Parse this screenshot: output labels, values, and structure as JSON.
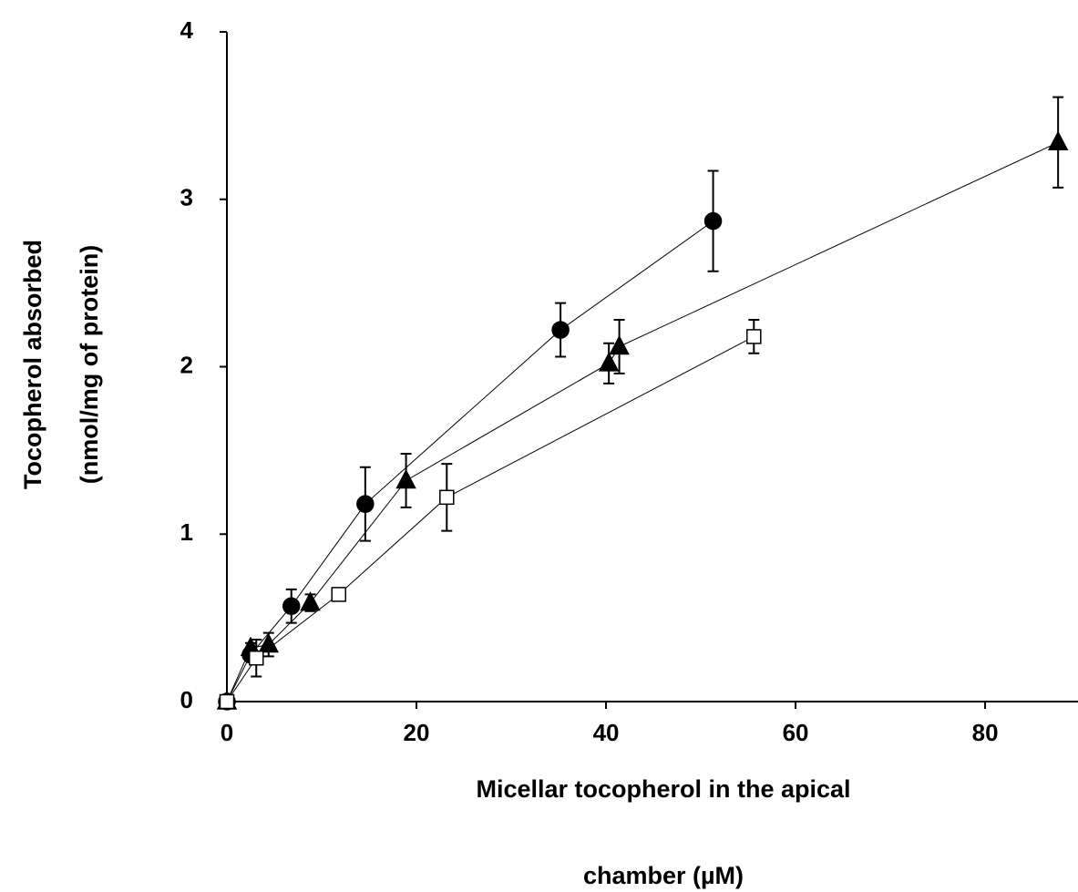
{
  "chart_data": {
    "type": "line",
    "x_label": [
      "Micellar tocopherol in the apical",
      "chamber (µM)"
    ],
    "y_label": [
      "Tocopherol absorbed",
      "(nmol/mg of protein)"
    ],
    "xlim": [
      0,
      89.8
    ],
    "xticks": [
      0,
      20,
      40,
      60,
      80
    ],
    "ylim": [
      0,
      4
    ],
    "yticks": [
      0,
      1,
      2,
      3,
      4
    ],
    "grid": false,
    "series": [
      {
        "marker": "circle",
        "color": "#000000",
        "fill": "#000000",
        "x": [
          0,
          2.5,
          6.8,
          14.6,
          35.2,
          51.3
        ],
        "values": [
          0,
          0.28,
          0.57,
          1.18,
          2.22,
          2.87
        ],
        "errors": [
          0,
          0.03,
          0.1,
          0.22,
          0.16,
          0.3
        ]
      },
      {
        "marker": "triangle",
        "color": "#000000",
        "fill": "#000000",
        "x": [
          0,
          2.5,
          4.4,
          8.8,
          18.9,
          40.3,
          41.4,
          87.7
        ],
        "values": [
          0,
          0.32,
          0.34,
          0.59,
          1.32,
          2.02,
          2.12,
          3.34
        ],
        "errors": [
          0,
          0.03,
          0.07,
          0.05,
          0.16,
          0.12,
          0.16,
          0.27
        ]
      },
      {
        "marker": "square",
        "color": "#000000",
        "fill": "#ffffff",
        "x": [
          0,
          3.1,
          11.8,
          23.2,
          55.6
        ],
        "values": [
          0,
          0.26,
          0.64,
          1.22,
          2.18
        ],
        "errors": [
          0,
          0.11,
          0.02,
          0.2,
          0.1
        ]
      }
    ]
  }
}
